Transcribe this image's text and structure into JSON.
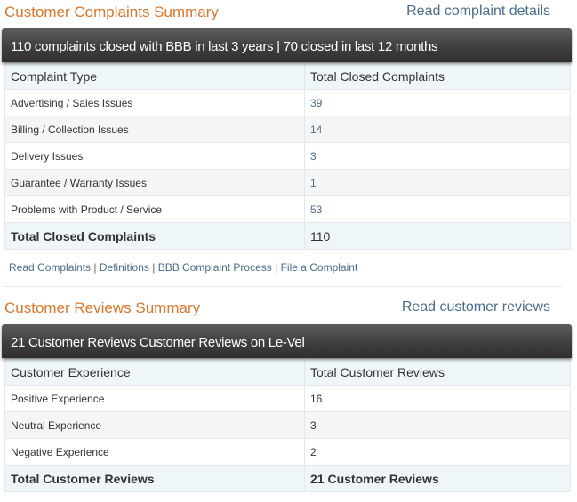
{
  "complaints": {
    "title": "Customer Complaints Summary",
    "details_link": "Read complaint details",
    "bar_text": "110 complaints closed with BBB in last 3 years | 70 closed in last 12 months",
    "header": {
      "type": "Complaint Type",
      "total": "Total Closed Complaints"
    },
    "rows": [
      {
        "type": "Advertising / Sales Issues",
        "count": "39"
      },
      {
        "type": "Billing / Collection Issues",
        "count": "14"
      },
      {
        "type": "Delivery Issues",
        "count": "3"
      },
      {
        "type": "Guarantee / Warranty Issues",
        "count": "1"
      },
      {
        "type": "Problems with Product / Service",
        "count": "53"
      }
    ],
    "total": {
      "label": "Total Closed Complaints",
      "value": "110"
    },
    "links": {
      "read": "Read Complaints",
      "definitions": "Definitions",
      "process": "BBB Complaint Process",
      "file": "File a Complaint",
      "separator": "|"
    }
  },
  "reviews": {
    "title": "Customer Reviews Summary",
    "details_link": "Read customer reviews",
    "bar_text": "21 Customer Reviews Customer Reviews on Le-Vel",
    "header": {
      "type": "Customer Experience",
      "total": "Total Customer Reviews"
    },
    "rows": [
      {
        "type": "Positive Experience",
        "count": "16"
      },
      {
        "type": "Neutral Experience",
        "count": "3"
      },
      {
        "type": "Negative Experience",
        "count": "2"
      }
    ],
    "total": {
      "label": "Total Customer Reviews",
      "value": "21 Customer Reviews"
    }
  },
  "colors": {
    "accent_orange": "#d9762b",
    "link_blue": "#4a6d8c",
    "bar_dark": "#3f3f3f",
    "header_bg": "#eef6fa"
  }
}
